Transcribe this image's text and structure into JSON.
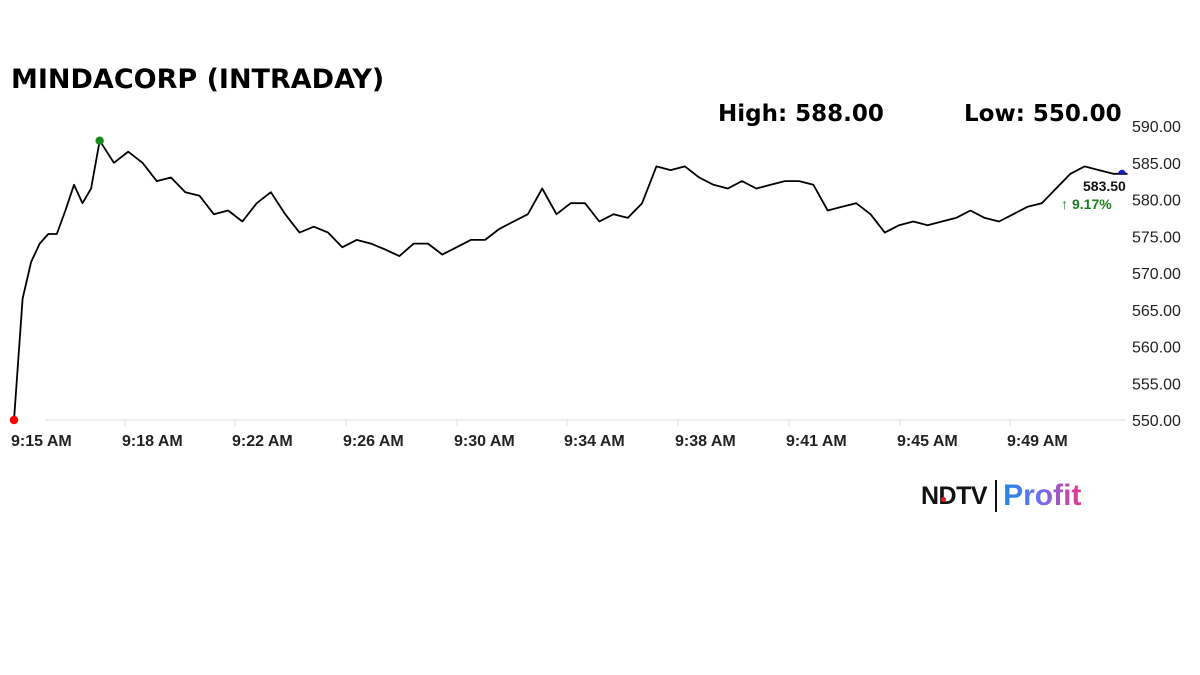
{
  "header": {
    "title": "MINDACORP (INTRADAY)",
    "high_label": "High: 588.00",
    "low_label": "Low: 550.00"
  },
  "last_price": {
    "value": "583.50",
    "change": "9.17%",
    "change_arrow": "↑",
    "change_color": "#1e7d1e"
  },
  "markers": {
    "low_color": "#ff0000",
    "high_color": "#1a8a1a",
    "last_color": "#1a1acc"
  },
  "logo": {
    "brand": "NDTV",
    "product": "Profit"
  },
  "chart_data": {
    "type": "line",
    "title": "MINDACORP (INTRADAY)",
    "xlabel": "",
    "ylabel": "",
    "ylim": [
      550,
      590
    ],
    "yticks": [
      "590.00",
      "585.00",
      "580.00",
      "575.00",
      "570.00",
      "565.00",
      "560.00",
      "555.00",
      "550.00"
    ],
    "xticks": [
      "9:15 AM",
      "9:18 AM",
      "9:22 AM",
      "9:26 AM",
      "9:30 AM",
      "9:34 AM",
      "9:38 AM",
      "9:41 AM",
      "9:45 AM",
      "9:49 AM"
    ],
    "grid": false,
    "legend": "none",
    "annotations": {
      "high": 588.0,
      "low": 550.0,
      "last": 583.5,
      "change_pct": 9.17
    },
    "series": [
      {
        "name": "MINDACORP",
        "x_minutes_from_915": [
          0,
          0.3,
          0.6,
          0.9,
          1.2,
          1.5,
          1.8,
          2.1,
          2.4,
          2.7,
          3.0,
          3.5,
          4.0,
          4.5,
          5.0,
          5.5,
          6.0,
          6.5,
          7.0,
          7.5,
          8.0,
          8.5,
          9.0,
          9.5,
          10.0,
          10.5,
          11.0,
          11.5,
          12.0,
          12.5,
          13.0,
          13.5,
          14.0,
          14.5,
          15.0,
          15.5,
          16.0,
          16.5,
          17.0,
          17.5,
          18.0,
          18.5,
          19.0,
          19.5,
          20.0,
          20.5,
          21.0,
          21.5,
          22.0,
          22.5,
          23.0,
          23.5,
          24.0,
          24.5,
          25.0,
          25.5,
          26.0,
          26.5,
          27.0,
          27.5,
          28.0,
          28.5,
          29.0,
          29.5,
          30.0,
          30.5,
          31.0,
          31.5,
          32.0,
          32.5,
          33.0,
          33.5,
          34.0,
          34.5,
          35.0,
          35.5,
          36.0,
          36.5,
          37.0,
          37.5,
          38.0,
          38.5,
          39.0
        ],
        "values": [
          550.0,
          566.5,
          571.5,
          574.0,
          575.3,
          575.3,
          578.5,
          582.0,
          579.5,
          581.5,
          588.0,
          585.0,
          586.5,
          585.0,
          582.5,
          583.0,
          581.0,
          580.5,
          578.0,
          578.5,
          577.0,
          579.5,
          581.0,
          578.0,
          575.5,
          576.3,
          575.5,
          573.5,
          574.5,
          574.0,
          573.2,
          572.3,
          574.0,
          574.0,
          572.5,
          573.5,
          574.5,
          574.5,
          576.0,
          577.0,
          578.0,
          581.5,
          578.0,
          579.5,
          579.5,
          577.0,
          578.0,
          577.5,
          579.5,
          584.5,
          584.0,
          584.5,
          583.0,
          582.0,
          581.5,
          582.5,
          581.5,
          582.0,
          582.5,
          582.5,
          582.0,
          578.5,
          579.0,
          579.5,
          578.0,
          575.5,
          576.5,
          577.0,
          576.5,
          577.0,
          577.5,
          578.5,
          577.5,
          577.0,
          578.0,
          579.0,
          579.5,
          581.5,
          583.5,
          584.5,
          584.0,
          583.5,
          583.5
        ]
      }
    ]
  }
}
